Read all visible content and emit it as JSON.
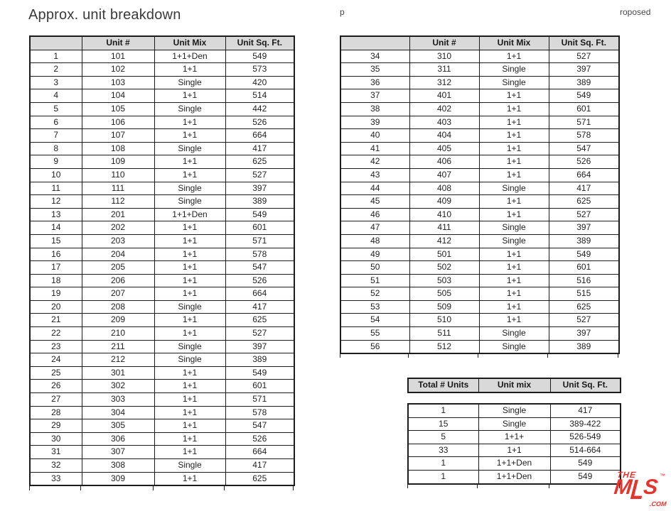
{
  "page": {
    "title": "Approx. unit breakdown",
    "header_fragment_left": "p",
    "header_fragment_right": "roposed"
  },
  "colors": {
    "header_bg": "#d9d9d9",
    "table_border": "#1c1c1c",
    "logo_red": "#e5332d"
  },
  "unit_columns": [
    "",
    "Unit #",
    "Unit Mix",
    "Unit Sq. Ft."
  ],
  "left_table": {
    "rows": [
      [
        "1",
        "101",
        "1+1+Den",
        "549"
      ],
      [
        "2",
        "102",
        "1+1",
        "573"
      ],
      [
        "3",
        "103",
        "Single",
        "420"
      ],
      [
        "4",
        "104",
        "1+1",
        "514"
      ],
      [
        "5",
        "105",
        "Single",
        "442"
      ],
      [
        "6",
        "106",
        "1+1",
        "526"
      ],
      [
        "7",
        "107",
        "1+1",
        "664"
      ],
      [
        "8",
        "108",
        "Single",
        "417"
      ],
      [
        "9",
        "109",
        "1+1",
        "625"
      ],
      [
        "10",
        "110",
        "1+1",
        "527"
      ],
      [
        "11",
        "111",
        "Single",
        "397"
      ],
      [
        "12",
        "112",
        "Single",
        "389"
      ],
      [
        "13",
        "201",
        "1+1+Den",
        "549"
      ],
      [
        "14",
        "202",
        "1+1",
        "601"
      ],
      [
        "15",
        "203",
        "1+1",
        "571"
      ],
      [
        "16",
        "204",
        "1+1",
        "578"
      ],
      [
        "17",
        "205",
        "1+1",
        "547"
      ],
      [
        "18",
        "206",
        "1+1",
        "526"
      ],
      [
        "19",
        "207",
        "1+1",
        "664"
      ],
      [
        "20",
        "208",
        "Single",
        "417"
      ],
      [
        "21",
        "209",
        "1+1",
        "625"
      ],
      [
        "22",
        "210",
        "1+1",
        "527"
      ],
      [
        "23",
        "211",
        "Single",
        "397"
      ],
      [
        "24",
        "212",
        "Single",
        "389"
      ],
      [
        "25",
        "301",
        "1+1",
        "549"
      ],
      [
        "26",
        "302",
        "1+1",
        "601"
      ],
      [
        "27",
        "303",
        "1+1",
        "571"
      ],
      [
        "28",
        "304",
        "1+1",
        "578"
      ],
      [
        "29",
        "305",
        "1+1",
        "547"
      ],
      [
        "30",
        "306",
        "1+1",
        "526"
      ],
      [
        "31",
        "307",
        "1+1",
        "664"
      ],
      [
        "32",
        "308",
        "Single",
        "417"
      ],
      [
        "33",
        "309",
        "1+1",
        "625"
      ]
    ]
  },
  "right_table": {
    "rows": [
      [
        "34",
        "310",
        "1+1",
        "527"
      ],
      [
        "35",
        "311",
        "Single",
        "397"
      ],
      [
        "36",
        "312",
        "Single",
        "389"
      ],
      [
        "37",
        "401",
        "1+1",
        "549"
      ],
      [
        "38",
        "402",
        "1+1",
        "601"
      ],
      [
        "39",
        "403",
        "1+1",
        "571"
      ],
      [
        "40",
        "404",
        "1+1",
        "578"
      ],
      [
        "41",
        "405",
        "1+1",
        "547"
      ],
      [
        "42",
        "406",
        "1+1",
        "526"
      ],
      [
        "43",
        "407",
        "1+1",
        "664"
      ],
      [
        "44",
        "408",
        "Single",
        "417"
      ],
      [
        "45",
        "409",
        "1+1",
        "625"
      ],
      [
        "46",
        "410",
        "1+1",
        "527"
      ],
      [
        "47",
        "411",
        "Single",
        "397"
      ],
      [
        "48",
        "412",
        "Single",
        "389"
      ],
      [
        "49",
        "501",
        "1+1",
        "549"
      ],
      [
        "50",
        "502",
        "1+1",
        "601"
      ],
      [
        "51",
        "503",
        "1+1",
        "516"
      ],
      [
        "52",
        "505",
        "1+1",
        "515"
      ],
      [
        "53",
        "509",
        "1+1",
        "625"
      ],
      [
        "54",
        "510",
        "1+1",
        "527"
      ],
      [
        "55",
        "511",
        "Single",
        "397"
      ],
      [
        "56",
        "512",
        "Single",
        "389"
      ]
    ]
  },
  "summary_table": {
    "columns": [
      "Total # Units",
      "Unit mix",
      "Unit Sq. Ft."
    ],
    "rows": [
      [
        "1",
        "Single",
        "417"
      ],
      [
        "15",
        "Single",
        "389-422"
      ],
      [
        "5",
        "1+1+",
        "526-549"
      ],
      [
        "33",
        "1+1",
        "514-664"
      ],
      [
        "1",
        "1+1+Den",
        "549"
      ],
      [
        "1",
        "1+1+Den",
        "549"
      ]
    ]
  },
  "logo": {
    "the": "THE",
    "m": "M",
    "l": "L",
    "s": "S",
    "tm": "™",
    "com": ".COM"
  }
}
